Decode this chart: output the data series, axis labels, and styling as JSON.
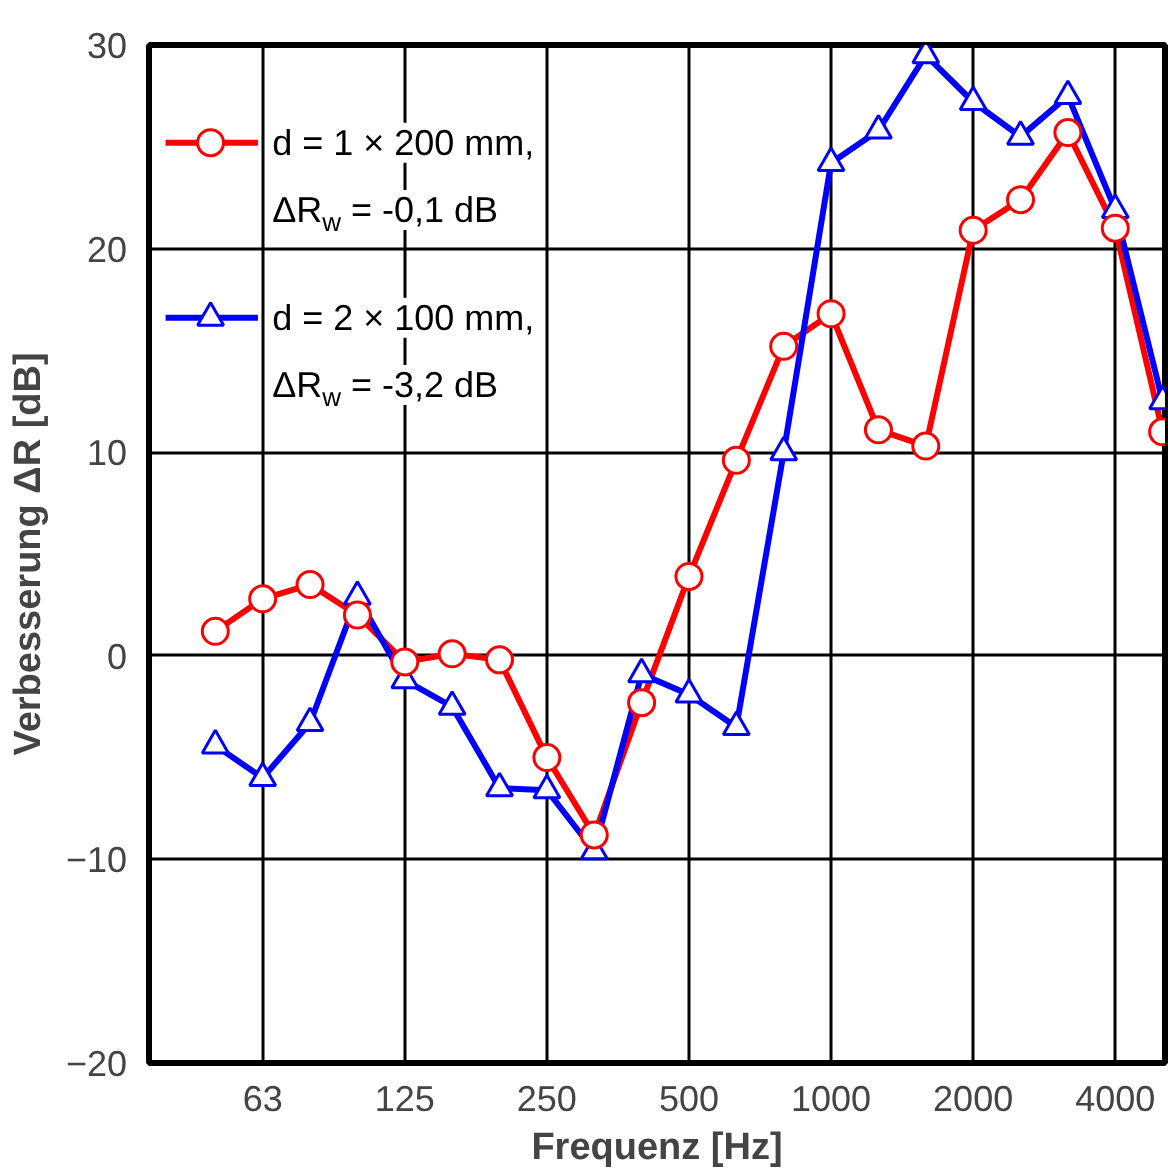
{
  "chart_data": {
    "type": "line",
    "xlabel": "Frequenz [Hz]",
    "ylabel": "Verbesserung ΔR [dB]",
    "categories": [
      null,
      "63",
      null,
      null,
      "125",
      null,
      null,
      "250",
      null,
      null,
      "500",
      null,
      null,
      "1000",
      null,
      null,
      "2000",
      null,
      null,
      "4000",
      null
    ],
    "series": [
      {
        "name": "d = 1 × 200 mm,\nΔR$_{w}$ = -0,1 dB",
        "color": "#ff0000",
        "marker": "circle",
        "values": [
          1.2,
          2.8,
          3.5,
          2.0,
          -0.3,
          0.1,
          -0.2,
          -5.0,
          -8.8,
          -2.3,
          3.9,
          9.6,
          15.2,
          16.8,
          11.1,
          10.3,
          20.9,
          22.4,
          25.7,
          21.0,
          11.0
        ]
      },
      {
        "name": "d = 2 × 100 mm,\nΔR$_{w}$ = -3,2 dB",
        "color": "#0000ff",
        "marker": "triangle",
        "values": [
          -4.4,
          -6.0,
          -3.3,
          2.9,
          -1.2,
          -2.5,
          -6.5,
          -6.6,
          -9.6,
          -0.9,
          -1.9,
          -3.5,
          10.0,
          24.2,
          25.8,
          29.5,
          27.2,
          25.5,
          27.5,
          21.9,
          12.5
        ]
      }
    ],
    "ylim": [
      -20,
      30
    ],
    "yticks": [
      -20,
      -10,
      0,
      10,
      20,
      30
    ],
    "grid": true,
    "legend": "top left",
    "line_style": "solid"
  }
}
